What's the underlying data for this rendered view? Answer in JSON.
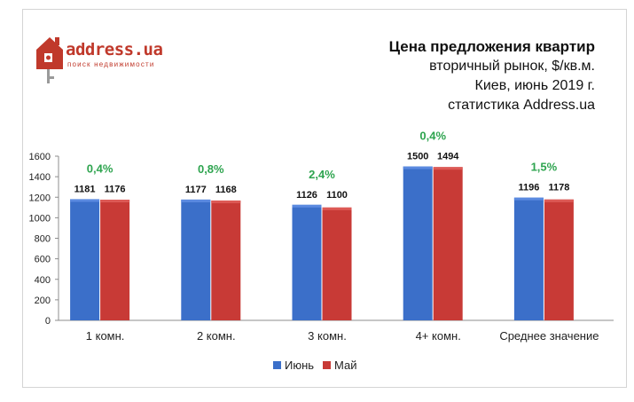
{
  "logo": {
    "name": "address.ua",
    "tagline": "поиск недвижимости"
  },
  "title": {
    "main": "Цена предложения квартир",
    "line2": "вторичный рынок, $/кв.м.",
    "line3": "Киев, июнь 2019 г.",
    "line4": "статистика Address.ua"
  },
  "colors": {
    "june": "#3b6fc9",
    "may": "#c83a36",
    "change": "#2ea44f",
    "logo": "#c0392b"
  },
  "chart_data": {
    "type": "bar",
    "categories": [
      "1 комн.",
      "2 комн.",
      "3 комн.",
      "4+ комн.",
      "Среднее значение"
    ],
    "series": [
      {
        "name": "Июнь",
        "values": [
          1181,
          1177,
          1126,
          1500,
          1196
        ]
      },
      {
        "name": "Май",
        "values": [
          1176,
          1168,
          1100,
          1494,
          1178
        ]
      }
    ],
    "value_labels": {
      "june": [
        "1181",
        "1177",
        "1126",
        "1500",
        "1196"
      ],
      "may": [
        "1176",
        "1168",
        "1100",
        "1494",
        "1178"
      ]
    },
    "change_labels": [
      "0,4%",
      "0,8%",
      "2,4%",
      "0,4%",
      "1,5%"
    ],
    "yticks": [
      "0",
      "200",
      "400",
      "600",
      "800",
      "1000",
      "1200",
      "1400",
      "1600"
    ],
    "ylim": [
      0,
      1600
    ],
    "grid": false,
    "legend_position": "bottom"
  }
}
